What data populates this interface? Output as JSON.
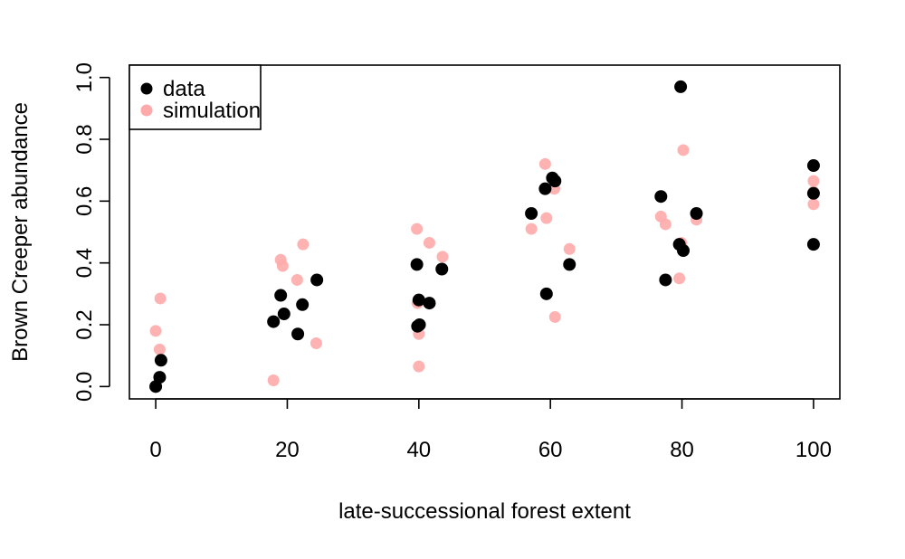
{
  "chart_data": {
    "type": "scatter",
    "title": "",
    "xlabel": "late-successional forest extent",
    "ylabel": "Brown Creeper abundance",
    "xlim": [
      -4,
      104
    ],
    "ylim": [
      -0.04,
      1.04
    ],
    "x_ticks": [
      0,
      20,
      40,
      60,
      80,
      100
    ],
    "y_ticks": [
      0.0,
      0.2,
      0.4,
      0.6,
      0.8,
      1.0
    ],
    "x_tick_labels": [
      "0",
      "20",
      "40",
      "60",
      "80",
      "100"
    ],
    "y_tick_labels": [
      "0.0",
      "0.2",
      "0.4",
      "0.6",
      "0.8",
      "1.0"
    ],
    "grid": false,
    "legend_position": "top-left",
    "series": [
      {
        "name": "simulation",
        "color": "#FFAAAA",
        "points": [
          {
            "x": 0.0,
            "y": 0.18
          },
          {
            "x": 0.6,
            "y": 0.12
          },
          {
            "x": 0.7,
            "y": 0.285
          },
          {
            "x": 17.9,
            "y": 0.02
          },
          {
            "x": 19.0,
            "y": 0.41
          },
          {
            "x": 19.3,
            "y": 0.39
          },
          {
            "x": 21.5,
            "y": 0.345
          },
          {
            "x": 22.4,
            "y": 0.46
          },
          {
            "x": 24.4,
            "y": 0.14
          },
          {
            "x": 39.7,
            "y": 0.51
          },
          {
            "x": 39.8,
            "y": 0.27
          },
          {
            "x": 40.0,
            "y": 0.17
          },
          {
            "x": 40.0,
            "y": 0.065
          },
          {
            "x": 41.6,
            "y": 0.465
          },
          {
            "x": 43.6,
            "y": 0.42
          },
          {
            "x": 57.1,
            "y": 0.51
          },
          {
            "x": 59.2,
            "y": 0.72
          },
          {
            "x": 59.4,
            "y": 0.545
          },
          {
            "x": 60.6,
            "y": 0.64
          },
          {
            "x": 60.7,
            "y": 0.225
          },
          {
            "x": 62.9,
            "y": 0.445
          },
          {
            "x": 76.8,
            "y": 0.55
          },
          {
            "x": 77.5,
            "y": 0.525
          },
          {
            "x": 79.6,
            "y": 0.35
          },
          {
            "x": 79.9,
            "y": 0.465
          },
          {
            "x": 80.2,
            "y": 0.765
          },
          {
            "x": 82.2,
            "y": 0.54
          },
          {
            "x": 100.0,
            "y": 0.665
          },
          {
            "x": 100.0,
            "y": 0.59
          },
          {
            "x": 100.0,
            "y": 0.63
          }
        ]
      },
      {
        "name": "data",
        "color": "#000000",
        "points": [
          {
            "x": 0.0,
            "y": 0.0
          },
          {
            "x": 0.6,
            "y": 0.03
          },
          {
            "x": 0.8,
            "y": 0.085
          },
          {
            "x": 17.9,
            "y": 0.21
          },
          {
            "x": 19.0,
            "y": 0.295
          },
          {
            "x": 19.5,
            "y": 0.235
          },
          {
            "x": 21.6,
            "y": 0.17
          },
          {
            "x": 22.3,
            "y": 0.265
          },
          {
            "x": 24.5,
            "y": 0.345
          },
          {
            "x": 39.7,
            "y": 0.395
          },
          {
            "x": 39.8,
            "y": 0.195
          },
          {
            "x": 40.1,
            "y": 0.2
          },
          {
            "x": 40.0,
            "y": 0.28
          },
          {
            "x": 41.6,
            "y": 0.27
          },
          {
            "x": 43.5,
            "y": 0.38
          },
          {
            "x": 57.1,
            "y": 0.56
          },
          {
            "x": 59.2,
            "y": 0.64
          },
          {
            "x": 59.4,
            "y": 0.3
          },
          {
            "x": 60.3,
            "y": 0.675
          },
          {
            "x": 60.7,
            "y": 0.665
          },
          {
            "x": 62.9,
            "y": 0.395
          },
          {
            "x": 76.8,
            "y": 0.615
          },
          {
            "x": 77.5,
            "y": 0.345
          },
          {
            "x": 79.6,
            "y": 0.46
          },
          {
            "x": 79.8,
            "y": 0.97
          },
          {
            "x": 80.2,
            "y": 0.44
          },
          {
            "x": 82.2,
            "y": 0.56
          },
          {
            "x": 100.0,
            "y": 0.715
          },
          {
            "x": 100.0,
            "y": 0.46
          },
          {
            "x": 100.0,
            "y": 0.625
          }
        ]
      }
    ],
    "legend": [
      {
        "label": "data",
        "color": "#000000"
      },
      {
        "label": "simulation",
        "color": "#FFAAAA"
      }
    ]
  }
}
